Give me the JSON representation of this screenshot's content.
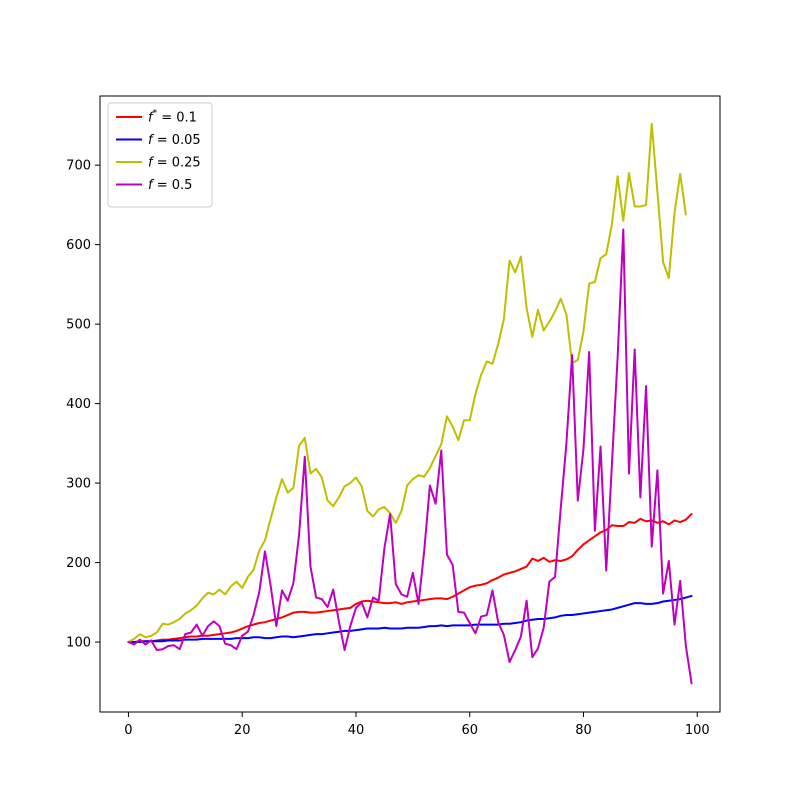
{
  "chart_data": {
    "type": "line",
    "title": "",
    "xlabel": "",
    "ylabel": "",
    "xlim": [
      -5,
      104
    ],
    "ylim": [
      12,
      787
    ],
    "x_ticks": [
      0,
      20,
      40,
      60,
      80,
      100
    ],
    "y_ticks": [
      100,
      200,
      300,
      400,
      500,
      600,
      700
    ],
    "grid": false,
    "legend_position": "top-left",
    "series": [
      {
        "name": "$f^* = 0.1$",
        "legend_main": "f",
        "legend_sup": "*",
        "legend_rest": " = 0.1",
        "color": "#ff0000",
        "values": [
          100,
          100,
          101,
          101,
          101,
          102,
          103,
          103,
          104,
          105,
          106,
          107,
          107,
          108,
          108,
          109,
          110,
          111,
          112,
          114,
          117,
          120,
          122,
          124,
          125,
          127,
          129,
          131,
          134,
          137,
          138,
          138,
          137,
          137,
          138,
          139,
          140,
          141,
          142,
          143,
          148,
          151,
          152,
          151,
          150,
          149,
          149,
          150,
          148,
          150,
          151,
          152,
          153,
          154,
          155,
          155,
          154,
          157,
          161,
          165,
          169,
          171,
          172,
          174,
          178,
          181,
          185,
          187,
          189,
          192,
          195,
          205,
          202,
          206,
          201,
          203,
          202,
          204,
          208,
          216,
          223,
          228,
          233,
          238,
          241,
          247,
          246,
          246,
          251,
          250,
          255,
          252,
          253,
          250,
          252,
          248,
          253,
          251,
          254,
          261
        ]
      },
      {
        "name": "$f = 0.05$",
        "legend_main": "f",
        "legend_sup": "",
        "legend_rest": " = 0.05",
        "color": "#0000ff",
        "values": [
          100,
          100,
          100,
          101,
          101,
          101,
          101,
          102,
          102,
          102,
          103,
          103,
          103,
          104,
          104,
          104,
          104,
          104,
          104,
          105,
          105,
          105,
          106,
          106,
          105,
          105,
          106,
          107,
          107,
          106,
          107,
          108,
          109,
          110,
          110,
          111,
          112,
          113,
          114,
          114,
          115,
          116,
          117,
          117,
          117,
          118,
          117,
          117,
          117,
          118,
          118,
          118,
          119,
          120,
          120,
          121,
          120,
          121,
          121,
          121,
          121,
          122,
          122,
          122,
          122,
          122,
          123,
          123,
          124,
          125,
          127,
          128,
          129,
          129,
          130,
          131,
          133,
          134,
          134,
          135,
          136,
          137,
          138,
          139,
          140,
          141,
          143,
          145,
          147,
          149,
          149,
          148,
          148,
          149,
          151,
          152,
          153,
          154,
          156,
          158
        ]
      },
      {
        "name": "$f = 0.25$",
        "legend_main": "f",
        "legend_sup": "",
        "legend_rest": " = 0.25",
        "color": "#bfbf00",
        "values": [
          100,
          104,
          110,
          106,
          108,
          112,
          123,
          122,
          125,
          129,
          136,
          140,
          146,
          155,
          162,
          160,
          166,
          160,
          170,
          176,
          168,
          182,
          191,
          215,
          228,
          255,
          282,
          305,
          288,
          294,
          347,
          357,
          312,
          318,
          307,
          278,
          271,
          282,
          296,
          300,
          307,
          296,
          265,
          258,
          267,
          270,
          262,
          250,
          265,
          297,
          305,
          310,
          308,
          319,
          334,
          349,
          384,
          371,
          354,
          379,
          379,
          412,
          436,
          453,
          450,
          475,
          506,
          580,
          565,
          585,
          520,
          484,
          518,
          492,
          503,
          516,
          532,
          512,
          451,
          455,
          491,
          551,
          553,
          583,
          588,
          626,
          686,
          630,
          690,
          648,
          648,
          650,
          752,
          666,
          578,
          558,
          640,
          689,
          638
        ]
      },
      {
        "name": "$f = 0.5$",
        "legend_main": "f",
        "legend_sup": "",
        "legend_rest": " = 0.5",
        "color": "#bf00bf",
        "values": [
          100,
          97,
          103,
          97,
          102,
          90,
          91,
          95,
          96,
          91,
          110,
          112,
          122,
          108,
          120,
          126,
          120,
          98,
          96,
          91,
          108,
          113,
          134,
          163,
          214,
          171,
          120,
          165,
          152,
          174,
          235,
          333,
          195,
          156,
          154,
          144,
          166,
          126,
          90,
          120,
          143,
          150,
          131,
          156,
          152,
          218,
          261,
          173,
          160,
          157,
          187,
          148,
          215,
          297,
          274,
          341,
          210,
          197,
          138,
          137,
          124,
          111,
          132,
          134,
          165,
          125,
          109,
          75,
          90,
          107,
          152,
          81,
          92,
          118,
          176,
          182,
          268,
          350,
          461,
          278,
          343,
          465,
          240,
          346,
          190,
          324,
          458,
          619,
          312,
          468,
          282,
          422,
          220,
          316,
          161,
          202,
          122,
          177,
          95,
          48
        ]
      }
    ]
  }
}
